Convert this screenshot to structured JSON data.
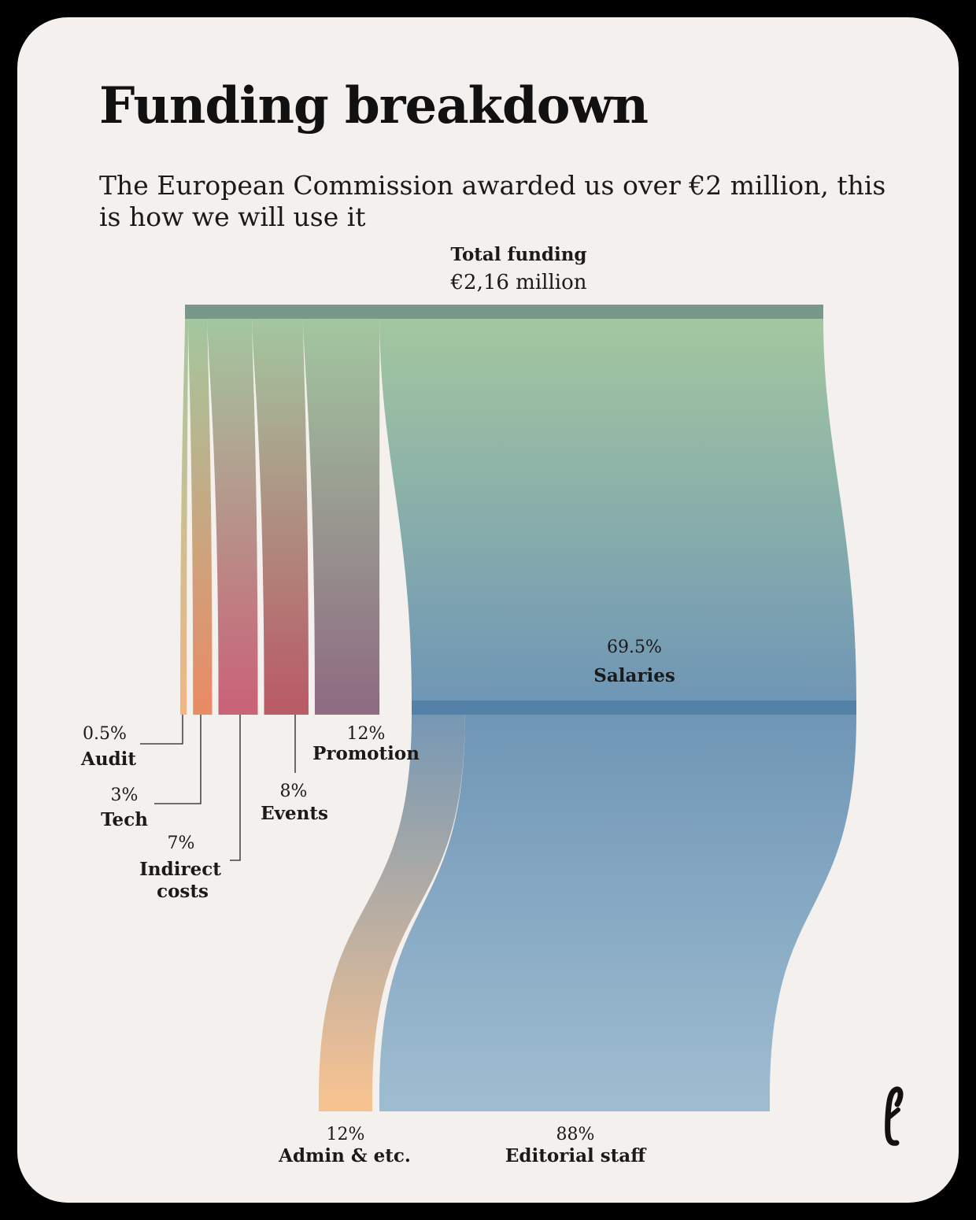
{
  "title": "Funding breakdown",
  "subtitle": "The European Commission awarded us over €2 million, this is how we will use it",
  "colors": {
    "background": "#000000",
    "card": "#f3f0ed",
    "total_bar": "#78998a",
    "green": "#a3c79f",
    "salaries_blue": "#6f96b6",
    "salaries_bar": "#5481a7",
    "editorial_light": "#9ebcd0",
    "admin_orange": "#f6c292",
    "audit": "#f0b785",
    "tech": "#e88c66",
    "indirect": "#c96478",
    "events": "#b95c66",
    "promotion": "#8e6d82"
  },
  "logo": "e-logo",
  "chart_data": {
    "type": "sankey",
    "root": {
      "label": "Total funding",
      "value": "€2,16 million"
    },
    "level1": [
      {
        "name": "Audit",
        "percent": "0.5%",
        "value": 0.5
      },
      {
        "name": "Tech",
        "percent": "3%",
        "value": 3
      },
      {
        "name": "Indirect costs",
        "lines": [
          "Indirect",
          "costs"
        ],
        "percent": "7%",
        "value": 7
      },
      {
        "name": "Events",
        "percent": "8%",
        "value": 8
      },
      {
        "name": "Promotion",
        "percent": "12%",
        "value": 12
      },
      {
        "name": "Salaries",
        "percent": "69.5%",
        "value": 69.5
      }
    ],
    "level2": {
      "parent": "Salaries",
      "children": [
        {
          "name": "Admin & etc.",
          "percent": "12%",
          "value": 12
        },
        {
          "name": "Editorial staff",
          "percent": "88%",
          "value": 88
        }
      ]
    }
  }
}
